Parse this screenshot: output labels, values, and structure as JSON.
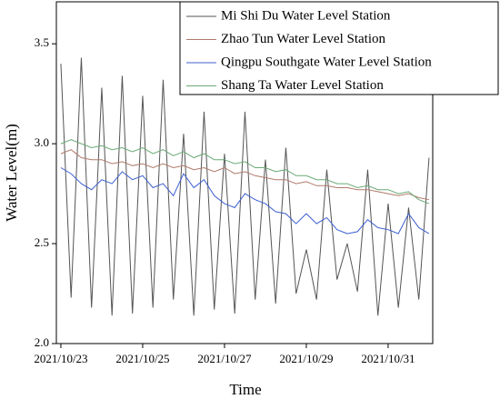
{
  "chart_data": {
    "type": "line",
    "xlabel": "Time",
    "ylabel": "Water Level(m)",
    "x": [
      0,
      0.25,
      0.5,
      0.75,
      1,
      1.25,
      1.5,
      1.75,
      2,
      2.25,
      2.5,
      2.75,
      3,
      3.25,
      3.5,
      3.75,
      4,
      4.25,
      4.5,
      4.75,
      5,
      5.25,
      5.5,
      5.75,
      6,
      6.25,
      6.5,
      6.75,
      7,
      7.25,
      7.5,
      7.75,
      8,
      8.25,
      8.5,
      8.75,
      9
    ],
    "series": [
      {
        "name": "Mi Shi Du Water Level Station",
        "color": "#555555",
        "values": [
          3.4,
          2.23,
          3.43,
          2.18,
          3.28,
          2.14,
          3.34,
          2.15,
          3.24,
          2.18,
          3.32,
          2.22,
          3.05,
          2.14,
          3.16,
          2.17,
          2.95,
          2.15,
          3.16,
          2.22,
          2.92,
          2.2,
          2.98,
          2.25,
          2.47,
          2.22,
          2.87,
          2.32,
          2.5,
          2.26,
          2.87,
          2.14,
          2.7,
          2.18,
          2.68,
          2.22,
          2.93
        ]
      },
      {
        "name": "Zhao Tun Water Level Station",
        "color": "#b07a6a",
        "values": [
          2.95,
          2.97,
          2.93,
          2.92,
          2.92,
          2.9,
          2.91,
          2.89,
          2.9,
          2.88,
          2.9,
          2.88,
          2.89,
          2.87,
          2.88,
          2.86,
          2.88,
          2.85,
          2.86,
          2.84,
          2.83,
          2.82,
          2.82,
          2.8,
          2.81,
          2.79,
          2.79,
          2.78,
          2.78,
          2.77,
          2.77,
          2.76,
          2.75,
          2.74,
          2.75,
          2.73,
          2.72
        ]
      },
      {
        "name": "Qingpu Southgate Water Level Station",
        "color": "#3c5fcf",
        "values": [
          2.88,
          2.85,
          2.8,
          2.77,
          2.82,
          2.8,
          2.86,
          2.82,
          2.84,
          2.78,
          2.8,
          2.74,
          2.85,
          2.78,
          2.82,
          2.74,
          2.7,
          2.68,
          2.75,
          2.72,
          2.7,
          2.66,
          2.65,
          2.6,
          2.65,
          2.6,
          2.63,
          2.57,
          2.55,
          2.56,
          2.62,
          2.58,
          2.57,
          2.55,
          2.65,
          2.58,
          2.55
        ]
      },
      {
        "name": "Shang Ta Water Level Station",
        "color": "#6aaa77",
        "values": [
          3.0,
          3.02,
          3.0,
          2.98,
          2.99,
          2.97,
          2.98,
          2.96,
          2.98,
          2.95,
          2.97,
          2.94,
          2.96,
          2.93,
          2.95,
          2.92,
          2.92,
          2.9,
          2.91,
          2.88,
          2.88,
          2.86,
          2.87,
          2.84,
          2.84,
          2.82,
          2.82,
          2.8,
          2.8,
          2.78,
          2.79,
          2.77,
          2.77,
          2.75,
          2.76,
          2.72,
          2.7
        ]
      }
    ],
    "xlim": [
      -0.11,
      9.09
    ],
    "xticks": [
      {
        "value": 0,
        "label": "2021/10/23"
      },
      {
        "value": 2,
        "label": "2021/10/25"
      },
      {
        "value": 4,
        "label": "2021/10/27"
      },
      {
        "value": 6,
        "label": "2021/10/29"
      },
      {
        "value": 8,
        "label": "2021/10/31"
      }
    ],
    "ylim": [
      2.0,
      3.71
    ],
    "yticks": [
      {
        "value": 2,
        "label": "2.0"
      },
      2.5,
      {
        "value": 3,
        "label": "3.0"
      },
      3.5
    ],
    "grid": false,
    "legend": "upper right"
  }
}
